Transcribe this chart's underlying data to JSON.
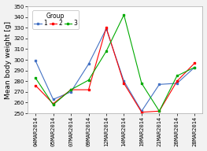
{
  "x_labels": [
    "04MAR2014",
    "05MAR2014",
    "07MAR2014",
    "09MAR2014",
    "12MAR2014",
    "14MAR2014",
    "19MAR2014",
    "21MAR2014",
    "26MAR2014",
    "28MAR2014"
  ],
  "g1_y": [
    299,
    263,
    270,
    296,
    329,
    280,
    252,
    277,
    278,
    293
  ],
  "g2_y": [
    276,
    259,
    272,
    272,
    330,
    278,
    251,
    252,
    280,
    297
  ],
  "g3_y": [
    283,
    258,
    272,
    281,
    308,
    342,
    278,
    252,
    285,
    293
  ],
  "ylim": [
    250,
    350
  ],
  "yticks": [
    250,
    260,
    270,
    280,
    290,
    300,
    310,
    320,
    330,
    340,
    350
  ],
  "ylabel": "Mean body weight [g]",
  "color1": "#4472C4",
  "color2": "#FF0000",
  "color3": "#00AA00",
  "bg_color": "#f2f2f2",
  "legend_title": "Group",
  "ylabel_fontsize": 6.5,
  "tick_fontsize": 5,
  "legend_fontsize": 5.5
}
